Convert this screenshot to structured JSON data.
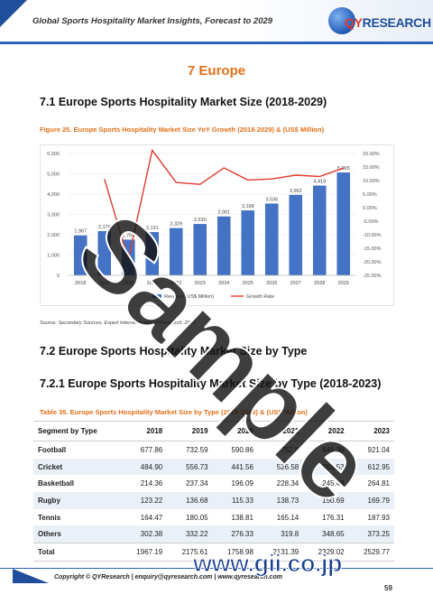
{
  "header": {
    "title": "Global Sports Hospitality Market Insights, Forecast to 2029",
    "logo_text_q": "QY",
    "logo_text_r": "RESEARCH"
  },
  "section": {
    "title": "7  Europe"
  },
  "heading_71": "7.1  Europe Sports Hospitality Market Size (2018-2029)",
  "figure": {
    "caption": "Figure 25.   Europe Sports Hospitality Market Size YoY Growth (2018-2029) & (US$ Million)"
  },
  "chart_data": {
    "type": "bar",
    "categories": [
      "2018",
      "2019",
      "2020",
      "2021",
      "2022",
      "2023",
      "2024",
      "2025",
      "2026",
      "2027",
      "2028",
      "2029"
    ],
    "series": [
      {
        "name": "Revenue (US$ Million)",
        "type": "bar",
        "axis": "left",
        "values": [
          1967,
          2176,
          1759,
          2131,
          2329,
          2530,
          2901,
          3198,
          3536,
          3962,
          4419,
          5065
        ]
      },
      {
        "name": "Growth Rate",
        "type": "line",
        "axis": "right",
        "values": [
          null,
          10.6,
          -19.2,
          21.2,
          9.3,
          8.6,
          14.7,
          10.2,
          10.6,
          12.0,
          11.5,
          14.6
        ]
      }
    ],
    "data_labels": [
      "1,967",
      "2,176",
      "1,759",
      "2,131",
      "2,329",
      "2,530",
      "2,901",
      "3,198",
      "3,536",
      "3,962",
      "4,419",
      "5,065"
    ],
    "y_left": {
      "ylim": [
        0,
        6000
      ],
      "ticks": [
        "0",
        "1,000",
        "2,000",
        "3,000",
        "4,000",
        "5,000",
        "6,000"
      ]
    },
    "y_right": {
      "ylim": [
        -25,
        20
      ],
      "ticks": [
        "-25.00%",
        "-20.00%",
        "-15.00%",
        "-10.00%",
        "-5.00%",
        "0.00%",
        "5.00%",
        "10.00%",
        "15.00%",
        "20.00%"
      ]
    },
    "bar_color": "#4472c4",
    "line_color": "#e03a30",
    "legend_position": "bottom"
  },
  "source": "Source: Secondary Sources, Expert Interviews and QYResearch, 2023",
  "heading_72": "7.2  Europe Sports Hospitality Market Size by Type",
  "heading_721": "7.2.1  Europe Sports Hospitality Market Size by Type (2018-2023)",
  "table": {
    "caption": "Table 35.   Europe Sports Hospitality Market Size by Type (2018-2023) & (US$ Million)",
    "headers": [
      "Segment by Type",
      "2018",
      "2019",
      "2020",
      "2021",
      "2022",
      "2023"
    ],
    "rows": [
      [
        "Football",
        "677.86",
        "732.59",
        "590.86",
        "752.8",
        "846.36",
        "921.04"
      ],
      [
        "Cricket",
        "484.90",
        "556.73",
        "441.56",
        "526.58",
        "561.53",
        "612.95"
      ],
      [
        "Basketball",
        "214.36",
        "237.34",
        "196.09",
        "228.34",
        "245.48",
        "264.81"
      ],
      [
        "Rugby",
        "123.22",
        "136.68",
        "115.33",
        "138.73",
        "150.69",
        "169.79"
      ],
      [
        "Tennis",
        "164.47",
        "180.05",
        "138.81",
        "165.14",
        "176.31",
        "187.93"
      ],
      [
        "Others",
        "302.38",
        "332.22",
        "276.33",
        "319.8",
        "348.65",
        "373.25"
      ],
      [
        "Total",
        "1967.19",
        "2175.61",
        "1758.98",
        "2131.39",
        "2329.02",
        "2529.77"
      ]
    ]
  },
  "footer": {
    "text": "Copyright © QYResearch | enquiry@qyresearch.com | www.qyresearch.com",
    "page": "59"
  },
  "watermark": "Sample",
  "gii": "www.gii.co.jp"
}
